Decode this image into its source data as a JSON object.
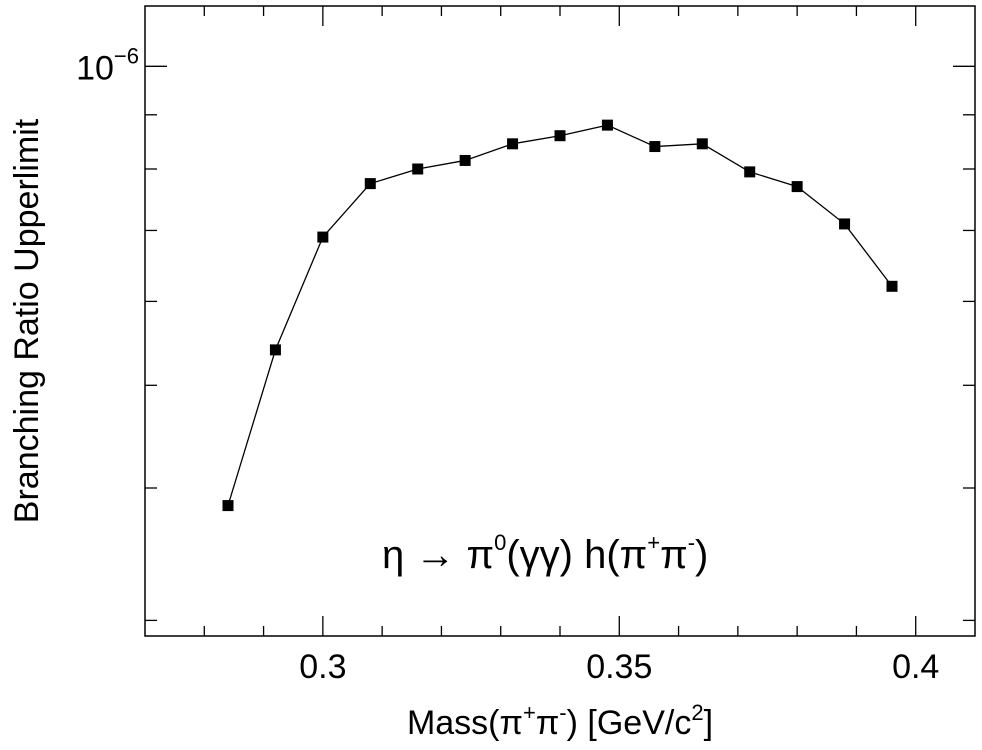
{
  "chart_data": {
    "type": "line",
    "title": "",
    "xlabel": {
      "base": "Mass(π",
      "s1": "+",
      "mid": "π",
      "s2": "-",
      "rest": ") [GeV/c",
      "s3": "2",
      "end": "]"
    },
    "ylabel": "Branching Ratio Upperlimit",
    "y_scale": "log",
    "xlim": [
      0.27,
      0.41
    ],
    "ylim": [
      2.9e-07,
      1.14e-06
    ],
    "x_ticks": [
      0.3,
      0.35,
      0.4
    ],
    "x_tick_labels": [
      "0.3",
      "0.35",
      "0.4"
    ],
    "y_ticks": [
      1e-06
    ],
    "y_tick_labels": [
      {
        "base": "10",
        "exp": "−6"
      }
    ],
    "annotation": {
      "pre": "η → π",
      "s1": "0",
      "mid": "(γγ) h(π",
      "s2": "+",
      "mid2": "π",
      "s3": "-",
      "end": ")"
    },
    "marker": "square",
    "line_color": "#000000",
    "marker_color": "#000000",
    "series": [
      {
        "x": [
          0.284,
          0.292,
          0.3,
          0.308,
          0.316,
          0.324,
          0.332,
          0.34,
          0.348,
          0.356,
          0.364,
          0.372,
          0.38,
          0.388,
          0.396
        ],
        "values": [
          3.85e-07,
          5.4e-07,
          6.9e-07,
          7.75e-07,
          8e-07,
          8.15e-07,
          8.45e-07,
          8.6e-07,
          8.8e-07,
          8.4e-07,
          8.45e-07,
          7.95e-07,
          7.7e-07,
          7.1e-07,
          6.2e-07
        ]
      }
    ]
  }
}
